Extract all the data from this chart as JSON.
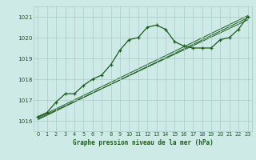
{
  "title": "Graphe pression niveau de la mer (hPa)",
  "bg_color": "#ceeae7",
  "grid_color": "#a8ccc8",
  "line_color": "#1a5c1a",
  "xlim": [
    -0.5,
    23.5
  ],
  "ylim": [
    1015.5,
    1021.5
  ],
  "yticks": [
    1016,
    1017,
    1018,
    1019,
    1020,
    1021
  ],
  "xticks": [
    0,
    1,
    2,
    3,
    4,
    5,
    6,
    7,
    8,
    9,
    10,
    11,
    12,
    13,
    14,
    15,
    16,
    17,
    18,
    19,
    20,
    21,
    22,
    23
  ],
  "series1": [
    1016.2,
    1016.4,
    1016.9,
    1017.3,
    1017.3,
    1017.7,
    1018.0,
    1018.2,
    1018.7,
    1019.4,
    1019.9,
    1020.0,
    1020.5,
    1020.6,
    1020.4,
    1019.8,
    1019.6,
    1019.5,
    1019.5,
    1019.5,
    1019.9,
    1020.0,
    1020.4,
    1021.0
  ],
  "line2": [
    [
      0,
      23
    ],
    [
      1016.1,
      1020.85
    ]
  ],
  "line3": [
    [
      0,
      23
    ],
    [
      1016.05,
      1020.95
    ]
  ],
  "line4": [
    [
      0,
      23
    ],
    [
      1016.15,
      1021.05
    ]
  ]
}
